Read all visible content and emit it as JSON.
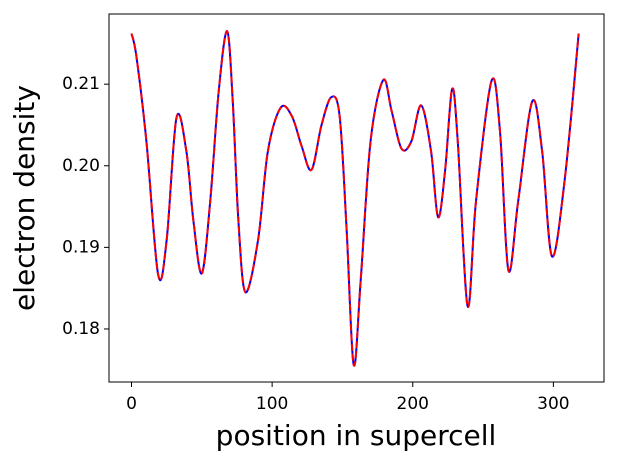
{
  "chart_data": {
    "type": "line",
    "xlabel": "position in supercell",
    "ylabel": "electron density",
    "x": [
      0,
      3.5,
      10.6,
      19,
      25,
      32,
      39,
      44,
      50,
      56,
      62,
      68,
      72,
      76,
      81,
      90,
      97,
      106,
      114,
      121,
      128,
      135,
      142,
      148,
      153,
      158,
      163,
      170,
      179,
      185,
      192,
      199,
      206,
      213,
      218,
      223,
      228,
      232,
      239,
      245,
      256,
      262,
      268,
      275,
      285,
      292,
      299,
      308,
      318
    ],
    "series": [
      {
        "color": "#0000ff",
        "linestyle": "solid",
        "values": [
          0.2162,
          0.2134,
          0.203,
          0.1866,
          0.1909,
          0.2059,
          0.2018,
          0.1933,
          0.1868,
          0.1957,
          0.2091,
          0.2165,
          0.2079,
          0.1933,
          0.1845,
          0.1909,
          0.2018,
          0.2071,
          0.2061,
          0.2024,
          0.1995,
          0.2049,
          0.2084,
          0.2061,
          0.1921,
          0.1756,
          0.186,
          0.203,
          0.2105,
          0.2067,
          0.2021,
          0.203,
          0.2074,
          0.2018,
          0.1937,
          0.1994,
          0.2094,
          0.203,
          0.1828,
          0.1957,
          0.2104,
          0.2043,
          0.1872,
          0.1957,
          0.2079,
          0.2018,
          0.1889,
          0.1982,
          0.2162
        ]
      },
      {
        "color": "#ff0000",
        "linestyle": "dashed",
        "values": [
          0.2162,
          0.2134,
          0.203,
          0.1866,
          0.1909,
          0.2059,
          0.2018,
          0.1933,
          0.1868,
          0.1957,
          0.2091,
          0.2165,
          0.2079,
          0.1933,
          0.1845,
          0.1909,
          0.2018,
          0.2071,
          0.2061,
          0.2024,
          0.1995,
          0.2049,
          0.2084,
          0.2061,
          0.1921,
          0.1756,
          0.186,
          0.203,
          0.2105,
          0.2067,
          0.2021,
          0.203,
          0.2074,
          0.2018,
          0.1937,
          0.1994,
          0.2094,
          0.203,
          0.1828,
          0.1957,
          0.2104,
          0.2043,
          0.1872,
          0.1957,
          0.2079,
          0.2018,
          0.1889,
          0.1982,
          0.2162
        ]
      }
    ],
    "xlim": [
      -16,
      336
    ],
    "xticks": [
      0,
      100,
      200,
      300
    ],
    "ylim": [
      0.1735,
      0.2186
    ],
    "yticks": [
      0.18,
      0.19,
      {
        "value": 0.2,
        "label": "0.20"
      },
      0.21
    ],
    "grid": false
  }
}
